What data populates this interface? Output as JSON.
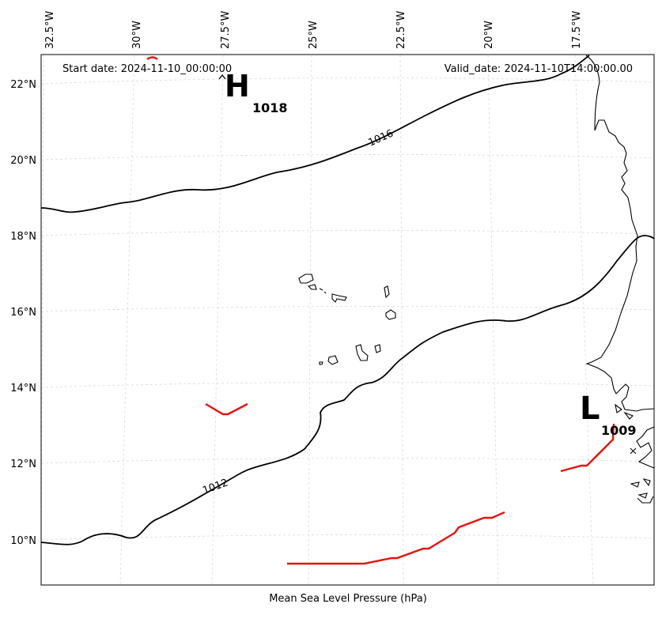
{
  "map": {
    "start_date": "Start date: 2024-11-10_00:00:00",
    "valid_date": "Valid_date: 2024-11-10T14:00:00.00",
    "xlabel": "Mean Sea Level Pressure (hPa)",
    "lon_ticks": [
      "32.5°W",
      "30°W",
      "27.5°W",
      "25°W",
      "22.5°W",
      "20°W",
      "17.5°W"
    ],
    "lat_ticks": [
      "22°N",
      "20°N",
      "18°N",
      "16°N",
      "14°N",
      "12°N",
      "10°N"
    ],
    "high": {
      "symbol": "H",
      "value": "1018"
    },
    "low": {
      "symbol": "L",
      "value": "1009"
    },
    "isobar_labels": [
      "1016",
      "1012"
    ],
    "colors": {
      "isobar": "#000000",
      "front": "#e8120c",
      "grid": "#d9d9d9",
      "coast": "#000000"
    }
  }
}
